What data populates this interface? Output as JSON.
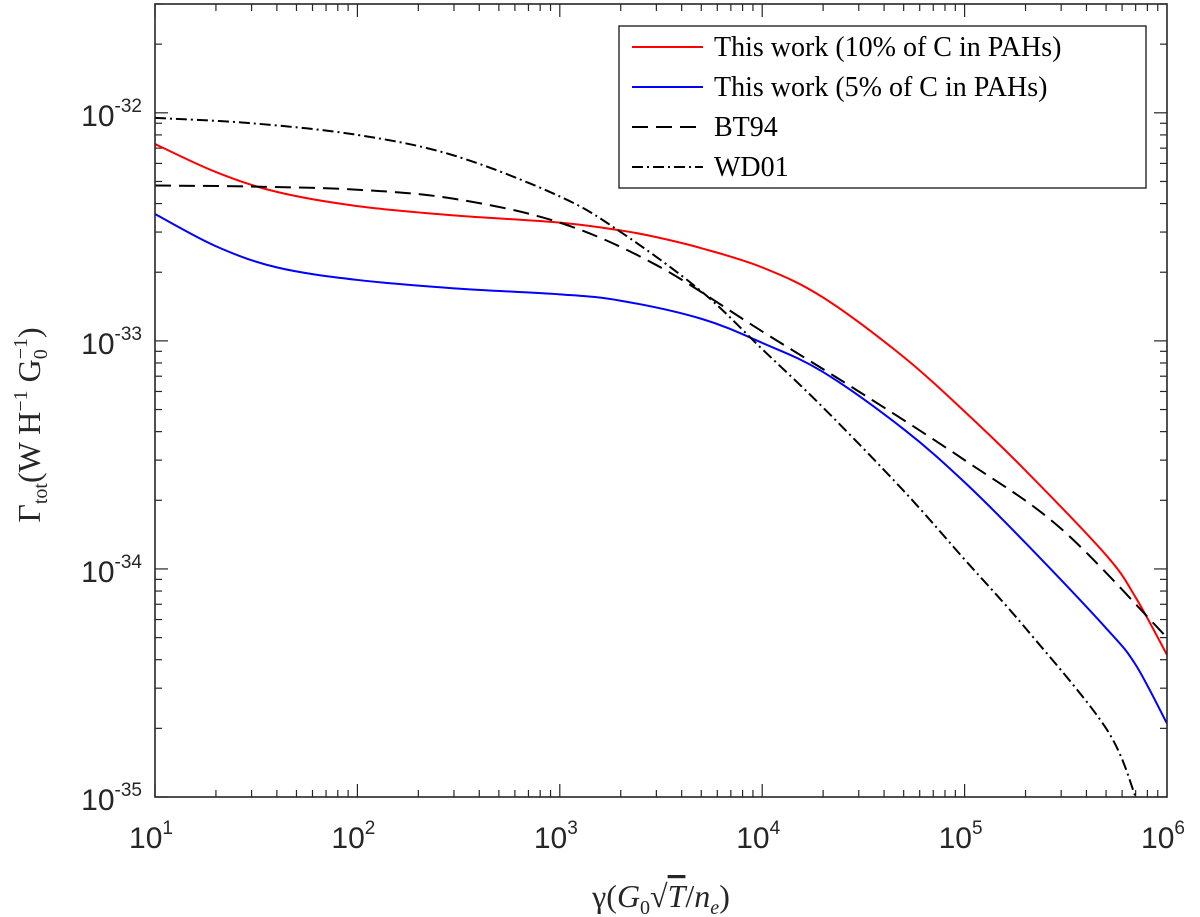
{
  "chart_data": {
    "type": "line",
    "xscale": "log",
    "yscale": "log",
    "xlim": [
      10,
      1000000
    ],
    "ylim": [
      1e-35,
      3e-32
    ],
    "x_ticks": [
      {
        "value": 10,
        "base": "10",
        "exp": "1"
      },
      {
        "value": 100,
        "base": "10",
        "exp": "2"
      },
      {
        "value": 1000,
        "base": "10",
        "exp": "3"
      },
      {
        "value": 10000,
        "base": "10",
        "exp": "4"
      },
      {
        "value": 100000,
        "base": "10",
        "exp": "5"
      },
      {
        "value": 1000000,
        "base": "10",
        "exp": "6"
      }
    ],
    "y_ticks": [
      {
        "value": 1e-35,
        "base": "10",
        "exp": "-35"
      },
      {
        "value": 1e-34,
        "base": "10",
        "exp": "-34"
      },
      {
        "value": 1e-33,
        "base": "10",
        "exp": "-33"
      },
      {
        "value": 1e-32,
        "base": "10",
        "exp": "-32"
      }
    ],
    "xlabel": {
      "gamma": "γ(",
      "g": "G",
      "g_sub": "0",
      "sqrt": "√",
      "t": "T",
      "slash": "/",
      "n": "n",
      "n_sub": "e",
      "close": ")"
    },
    "ylabel": {
      "gamma": "Γ",
      "sub": "tot",
      "open": "(W H",
      "h_exp": "−1",
      "g": " G",
      "g_sub": "0",
      "g_exp": "−1",
      "close": ")"
    },
    "legend": {
      "location": "top-right",
      "entries": [
        {
          "label": "This work (10% of C in PAHs)",
          "color": "#ff0000",
          "dash": "solid"
        },
        {
          "label": "This work (5% of C in PAHs)",
          "color": "#0000ff",
          "dash": "solid"
        },
        {
          "label": "BT94",
          "color": "#000000",
          "dash": "dashed"
        },
        {
          "label": "WD01",
          "color": "#000000",
          "dash": "dashdot"
        }
      ]
    },
    "series": [
      {
        "name": "This work (10% of C in PAHs)",
        "color": "#ff0000",
        "dash": "solid",
        "x": [
          10,
          20,
          40,
          100,
          300,
          1000,
          2000,
          3000,
          5000,
          10000,
          20000,
          50000,
          100000,
          200000,
          500000,
          700000,
          1000000
        ],
        "y": [
          7.3e-33,
          5.5e-33,
          4.5e-33,
          3.9e-33,
          3.55e-33,
          3.3e-33,
          3.05e-33,
          2.85e-33,
          2.55e-33,
          2.1e-33,
          1.55e-33,
          8.5e-34,
          4.9e-34,
          2.7e-34,
          1.15e-34,
          7.5e-35,
          4.2e-35
        ]
      },
      {
        "name": "This work (5% of C in PAHs)",
        "color": "#0000ff",
        "dash": "solid",
        "x": [
          10,
          20,
          40,
          100,
          300,
          1000,
          2000,
          5000,
          10000,
          20000,
          50000,
          100000,
          200000,
          500000,
          700000,
          1000000
        ],
        "y": [
          3.6e-33,
          2.6e-33,
          2.1e-33,
          1.85e-33,
          1.7e-33,
          1.6e-33,
          1.5e-33,
          1.25e-33,
          9.8e-34,
          7.3e-34,
          4.1e-34,
          2.4e-34,
          1.3e-34,
          5.5e-35,
          3.8e-35,
          2.1e-35
        ]
      },
      {
        "name": "BT94",
        "color": "#000000",
        "dash": "dashed",
        "x": [
          10,
          30,
          100,
          300,
          1000,
          3000,
          10000,
          30000,
          100000,
          300000,
          1000000
        ],
        "y": [
          4.8e-33,
          4.75e-33,
          4.6e-33,
          4.2e-33,
          3.3e-33,
          2.15e-33,
          1.1e-33,
          6e-34,
          3e-34,
          1.5e-34,
          5e-35
        ]
      },
      {
        "name": "WD01",
        "color": "#000000",
        "dash": "dashdot",
        "x": [
          10,
          30,
          100,
          300,
          1000,
          2000,
          5000,
          10000,
          20000,
          50000,
          100000,
          200000,
          500000,
          700000
        ],
        "y": [
          9.5e-33,
          9e-33,
          8e-33,
          6.5e-33,
          4.3e-33,
          3e-33,
          1.65e-33,
          9.2e-34,
          5.1e-34,
          2.2e-34,
          1.1e-34,
          5.5e-35,
          2e-35,
          1e-35
        ]
      }
    ]
  }
}
